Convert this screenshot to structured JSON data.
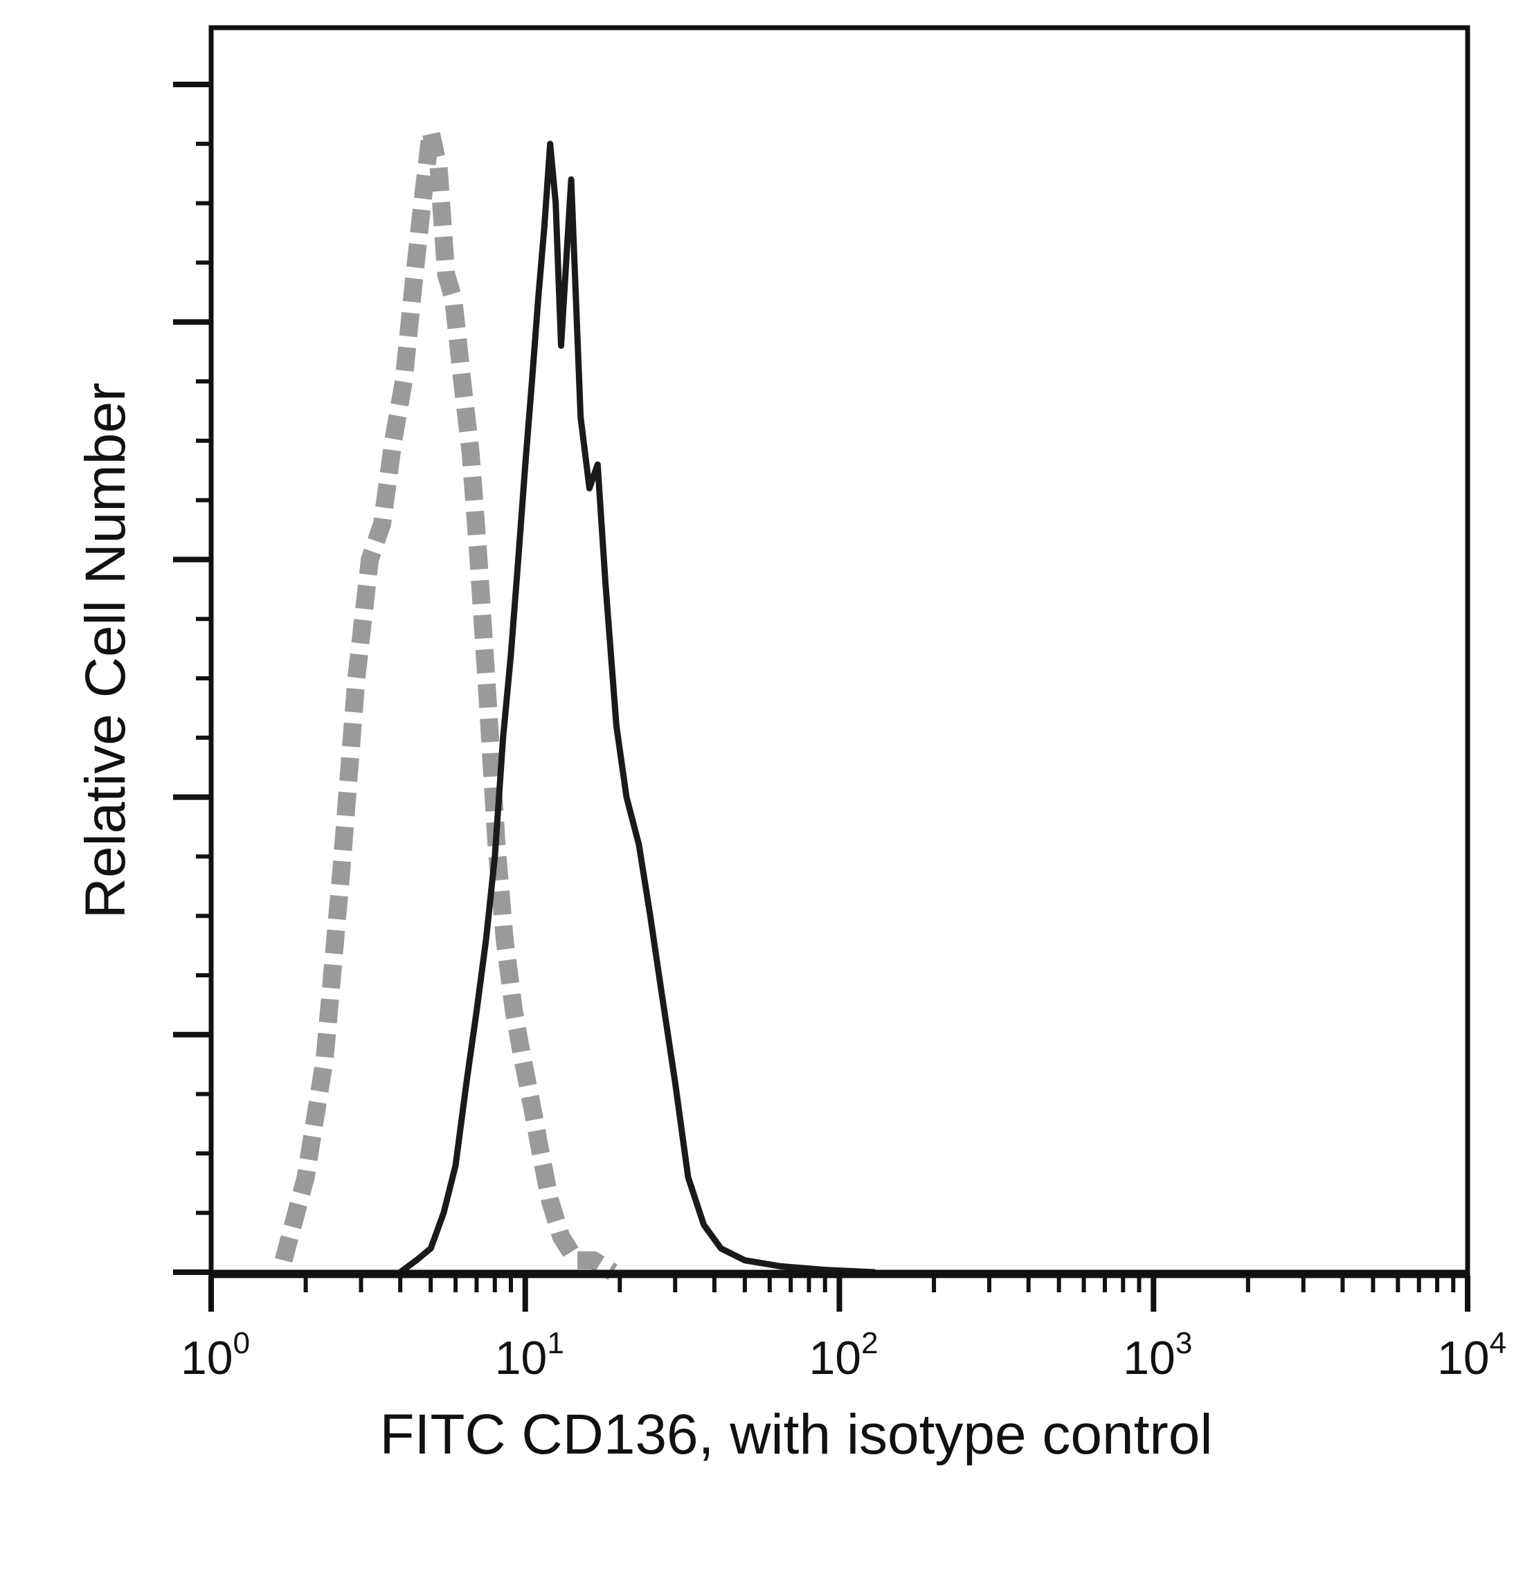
{
  "chart_data": {
    "type": "line",
    "xlabel": "FITC CD136, with isotype control",
    "ylabel": "Relative Cell Number",
    "x_scale": "log",
    "xlim": [
      1,
      10000
    ],
    "ylim": [
      0,
      100
    ],
    "grid": false,
    "legend": "none",
    "x_tick_labels": [
      {
        "value": 1,
        "base": "10",
        "exp": "0"
      },
      {
        "value": 10,
        "base": "10",
        "exp": "1"
      },
      {
        "value": 100,
        "base": "10",
        "exp": "2"
      },
      {
        "value": 1000,
        "base": "10",
        "exp": "3"
      },
      {
        "value": 10000,
        "base": "10",
        "exp": "4"
      }
    ],
    "y_major_ticks": [
      0,
      20,
      40,
      60,
      80,
      100
    ],
    "series": [
      {
        "style": "dashed",
        "color": "#9a9a9a",
        "x": [
          1.7,
          2.0,
          2.3,
          2.6,
          2.9,
          3.2,
          3.5,
          3.8,
          4.1,
          4.4,
          4.7,
          5.0,
          5.3,
          5.6,
          5.9,
          6.3,
          6.7,
          7.1,
          7.6,
          8.1,
          8.6,
          9.2,
          9.8,
          10.5,
          11.2,
          12.0,
          13.0,
          14.5,
          16.5,
          19.0
        ],
        "y": [
          1,
          8,
          18,
          34,
          50,
          60,
          63,
          70,
          75,
          83,
          90,
          96,
          93,
          84,
          82,
          75,
          69,
          60,
          48,
          36,
          28,
          22,
          18,
          14,
          10,
          6,
          3,
          1,
          1,
          0
        ]
      },
      {
        "style": "solid",
        "color": "#1a1a1a",
        "x": [
          4.0,
          4.5,
          5.0,
          5.5,
          6.0,
          6.5,
          7.0,
          7.5,
          8.0,
          8.5,
          9.0,
          9.5,
          10.0,
          10.5,
          11.0,
          11.5,
          12.0,
          12.5,
          13.0,
          14.0,
          15.0,
          16.0,
          17.0,
          18.0,
          19.5,
          21.0,
          23.0,
          25.0,
          27.0,
          30.0,
          33.0,
          37.0,
          42.0,
          50.0,
          65.0,
          90.0,
          130.0
        ],
        "y": [
          0,
          1,
          2,
          5,
          9,
          16,
          22,
          28,
          35,
          45,
          52,
          60,
          68,
          75,
          82,
          88,
          95,
          90,
          78,
          92,
          72,
          66,
          68,
          58,
          46,
          40,
          36,
          30,
          24,
          16,
          8,
          4,
          2,
          1,
          0.5,
          0.2,
          0
        ]
      }
    ]
  }
}
